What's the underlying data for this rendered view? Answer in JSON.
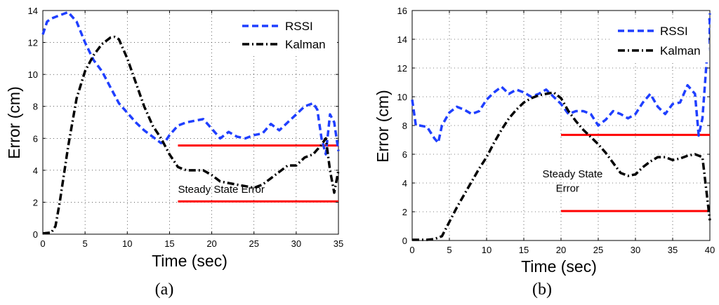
{
  "chart_data": [
    {
      "type": "line",
      "panel_label": "(a)",
      "xlabel": "Time (sec)",
      "ylabel": "Error (cm)",
      "xlim": [
        0,
        35
      ],
      "ylim": [
        0,
        14
      ],
      "xticks": [
        0,
        5,
        10,
        15,
        20,
        25,
        30,
        35
      ],
      "yticks": [
        0,
        2,
        4,
        6,
        8,
        10,
        12,
        14
      ],
      "grid": true,
      "legend_position": "top-right",
      "series": [
        {
          "name": "RSSI",
          "color": "#1f3fff",
          "style": "dashed",
          "x": [
            0,
            0.5,
            1,
            2,
            3,
            4,
            5,
            6,
            7,
            8,
            9,
            10,
            11,
            12,
            13,
            14,
            14.5,
            15,
            16,
            17,
            18,
            19,
            20,
            21,
            22,
            23,
            24,
            25,
            26,
            27,
            28,
            29,
            30,
            31,
            32,
            32.5,
            33,
            33.5,
            34,
            34.5,
            35
          ],
          "y": [
            12.5,
            13.3,
            13.5,
            13.7,
            13.9,
            13.3,
            12,
            10.9,
            10.2,
            9.2,
            8.2,
            7.6,
            7.0,
            6.5,
            6.1,
            5.7,
            5.8,
            6.2,
            6.8,
            7.0,
            7.1,
            7.2,
            6.6,
            6.0,
            6.4,
            6.1,
            6.0,
            6.2,
            6.3,
            6.9,
            6.5,
            7.0,
            7.5,
            8.0,
            8.2,
            7.8,
            6.0,
            5.0,
            7.5,
            7.0,
            5.2
          ]
        },
        {
          "name": "Kalman",
          "color": "#000000",
          "style": "dashdot",
          "x": [
            0,
            1,
            1.5,
            2,
            3,
            4,
            5,
            6,
            7,
            8,
            8.5,
            9,
            10,
            11,
            12,
            13,
            14,
            15,
            16,
            17,
            18,
            19,
            20,
            21,
            22,
            23,
            24,
            25,
            26,
            27,
            28,
            29,
            30,
            31,
            32,
            33,
            33.5,
            34,
            34.5,
            35
          ],
          "y": [
            0.05,
            0.1,
            0.5,
            2.0,
            5.5,
            8.5,
            10.2,
            11.2,
            11.9,
            12.3,
            12.35,
            12.2,
            11.0,
            9.5,
            8.0,
            6.8,
            6.0,
            5.0,
            4.2,
            4.0,
            4.0,
            4.0,
            3.7,
            3.3,
            3.2,
            3.1,
            3.0,
            2.9,
            3.1,
            3.5,
            3.9,
            4.3,
            4.3,
            4.8,
            5.0,
            5.6,
            6.0,
            4.0,
            2.6,
            4.0
          ]
        }
      ],
      "reference_lines": [
        {
          "x": [
            16,
            35
          ],
          "y": [
            5.55,
            5.55
          ],
          "color": "#ff0000"
        },
        {
          "x": [
            16,
            35
          ],
          "y": [
            2.05,
            2.05
          ],
          "color": "#ff0000"
        }
      ],
      "annotations": [
        {
          "text": "Steady State Error",
          "x": 16,
          "y": 2.6
        }
      ]
    },
    {
      "type": "line",
      "panel_label": "(b)",
      "xlabel": "Time (sec)",
      "ylabel": "Error (cm)",
      "xlim": [
        0,
        40
      ],
      "ylim": [
        0,
        16
      ],
      "xticks": [
        0,
        5,
        10,
        15,
        20,
        25,
        30,
        35,
        40
      ],
      "yticks": [
        0,
        2,
        4,
        6,
        8,
        10,
        12,
        14,
        16
      ],
      "grid": true,
      "legend_position": "top-right",
      "series": [
        {
          "name": "RSSI",
          "color": "#1f3fff",
          "style": "dashed",
          "x": [
            0,
            0.5,
            1,
            2,
            3,
            3.5,
            4,
            5,
            6,
            7,
            8,
            9,
            10,
            11,
            12,
            13,
            14,
            15,
            16,
            17,
            18,
            19,
            20,
            21,
            22,
            23,
            24,
            25,
            26,
            27,
            28,
            29,
            30,
            31,
            32,
            33,
            34,
            35,
            36,
            37,
            38,
            38.5,
            39,
            39.5,
            40
          ],
          "y": [
            9.8,
            8.0,
            8.0,
            7.9,
            7.1,
            6.8,
            8.0,
            8.9,
            9.3,
            9.1,
            8.8,
            9.0,
            9.8,
            10.3,
            10.7,
            10.2,
            10.5,
            10.3,
            10.0,
            10.2,
            10.5,
            10.0,
            9.5,
            8.8,
            9.0,
            9.0,
            8.8,
            8.0,
            8.4,
            9.0,
            8.8,
            8.5,
            8.8,
            9.6,
            10.2,
            9.3,
            8.8,
            9.5,
            9.6,
            10.8,
            10.2,
            7.3,
            8.5,
            12.0,
            15.8
          ]
        },
        {
          "name": "Kalman",
          "color": "#000000",
          "style": "dashdot",
          "x": [
            0,
            2,
            3,
            4,
            5,
            6,
            7,
            8,
            9,
            10,
            11,
            12,
            13,
            14,
            15,
            16,
            17,
            18,
            19,
            20,
            21,
            22,
            23,
            24,
            25,
            26,
            27,
            28,
            29,
            30,
            31,
            32,
            33,
            34,
            35,
            36,
            37,
            38,
            39,
            40
          ],
          "y": [
            0.05,
            0.05,
            0.1,
            0.3,
            1.3,
            2.3,
            3.2,
            4.1,
            5.0,
            5.8,
            6.8,
            7.7,
            8.5,
            9.1,
            9.6,
            9.9,
            10.1,
            10.2,
            10.3,
            9.9,
            9.0,
            8.3,
            7.7,
            7.2,
            6.7,
            6.1,
            5.4,
            4.7,
            4.5,
            4.6,
            5.1,
            5.5,
            5.8,
            5.8,
            5.6,
            5.7,
            5.9,
            6.0,
            5.8,
            1.4
          ]
        }
      ],
      "reference_lines": [
        {
          "x": [
            20,
            40
          ],
          "y": [
            7.35,
            7.35
          ],
          "color": "#ff0000"
        },
        {
          "x": [
            20,
            40
          ],
          "y": [
            2.05,
            2.05
          ],
          "color": "#ff0000"
        }
      ],
      "annotations": [
        {
          "text": "Steady State",
          "x": 17.5,
          "y": 4.4
        },
        {
          "text": "Error",
          "x": 19.3,
          "y": 3.4
        }
      ]
    }
  ]
}
